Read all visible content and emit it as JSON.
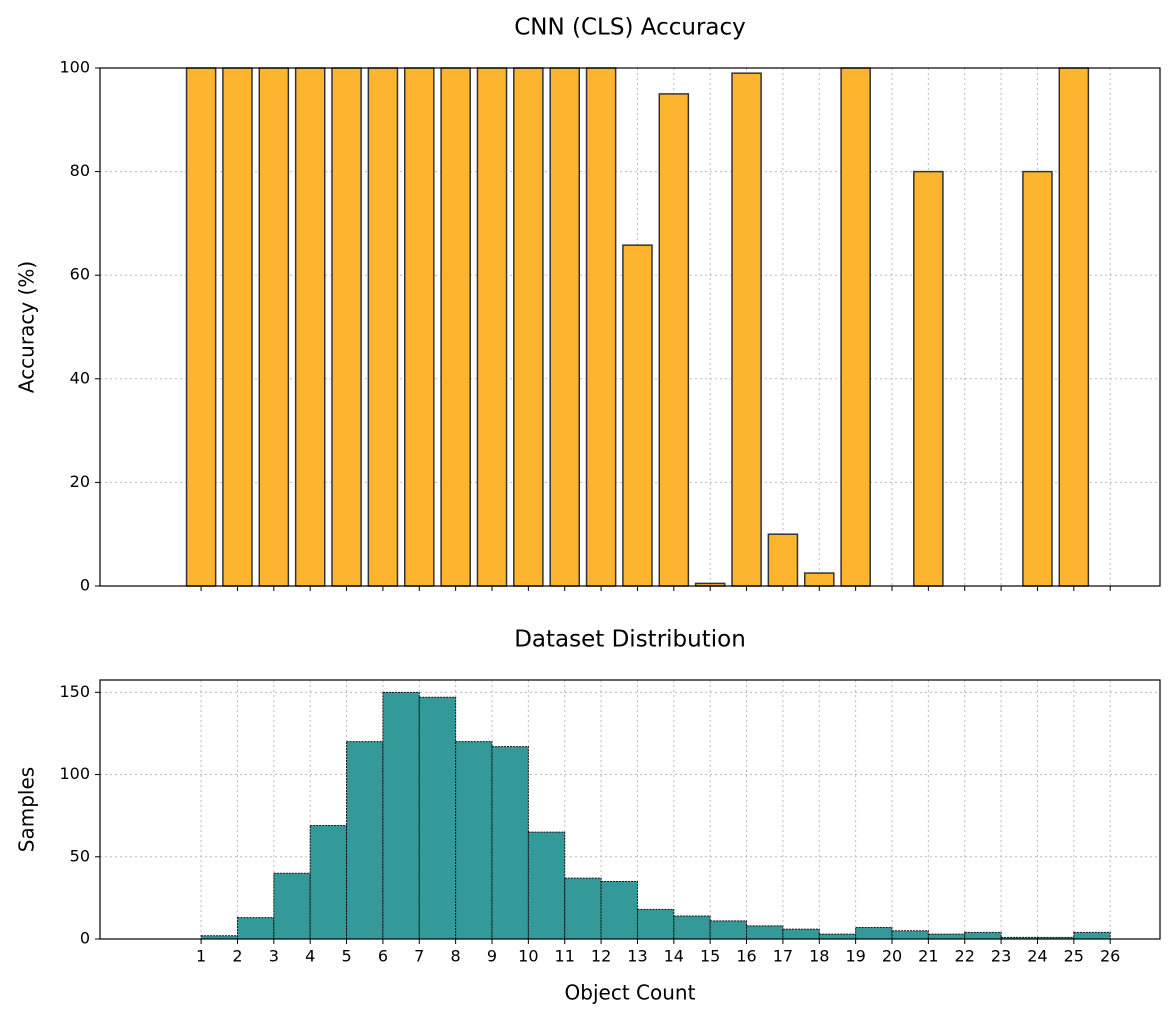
{
  "chart_data": [
    {
      "type": "bar",
      "title": "CNN (CLS) Accuracy",
      "ylabel": "Accuracy (%)",
      "x": [
        0,
        1,
        2,
        3,
        4,
        5,
        6,
        7,
        8,
        9,
        10,
        11,
        12,
        13,
        14,
        15,
        16,
        17,
        18,
        19,
        20,
        21,
        22,
        23,
        24,
        25,
        26
      ],
      "values": [
        0,
        100,
        100,
        100,
        100,
        100,
        100,
        100,
        100,
        100,
        100,
        100,
        100,
        65.8,
        95,
        0.5,
        99,
        10,
        2.5,
        100,
        0,
        80,
        0,
        0,
        80,
        100,
        0
      ],
      "color": "#fdb42f",
      "edgecolor": "#333333",
      "xlim": [
        -1.78,
        27.37
      ],
      "xticks": [
        1,
        2,
        3,
        4,
        5,
        6,
        7,
        8,
        9,
        10,
        11,
        12,
        13,
        14,
        15,
        16,
        17,
        18,
        19,
        20,
        21,
        22,
        23,
        24,
        25,
        26
      ],
      "ylim": [
        0,
        100
      ],
      "yticks": [
        0,
        20,
        40,
        60,
        80,
        100
      ],
      "grid": true
    },
    {
      "type": "histogram",
      "title": "Dataset Distribution",
      "ylabel": "Samples",
      "xlabel": "Object Count",
      "bins": [
        1,
        2,
        3,
        4,
        5,
        6,
        7,
        8,
        9,
        10,
        11,
        12,
        13,
        14,
        15,
        16,
        17,
        18,
        19,
        20,
        21,
        22,
        23,
        24,
        25,
        26
      ],
      "values": [
        2,
        13,
        40,
        69,
        120,
        150,
        147,
        120,
        117,
        65,
        37,
        35,
        18,
        14,
        11,
        8,
        6,
        3,
        7,
        5,
        3,
        4,
        1,
        1,
        4
      ],
      "color": "#339a99",
      "edgecolor": "#111111",
      "xlim": [
        -1.78,
        27.37
      ],
      "xticks": [
        1,
        2,
        3,
        4,
        5,
        6,
        7,
        8,
        9,
        10,
        11,
        12,
        13,
        14,
        15,
        16,
        17,
        18,
        19,
        20,
        21,
        22,
        23,
        24,
        25,
        26
      ],
      "ylim": [
        0,
        157.5
      ],
      "yticks": [
        0,
        50,
        100,
        150
      ],
      "grid": true
    }
  ]
}
